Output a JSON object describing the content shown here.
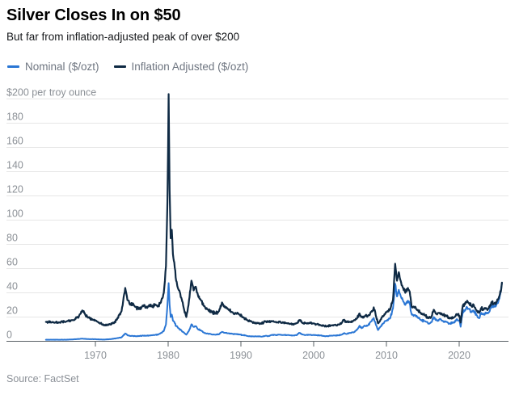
{
  "header": {
    "title": "Silver Closes In on $50",
    "subtitle": "But far from inflation-adjusted peak of over $200"
  },
  "legend": [
    {
      "label": "Nominal ($/ozt)",
      "color": "#2a76d4"
    },
    {
      "label": "Inflation Adjusted ($/ozt)",
      "color": "#0f2a44"
    }
  ],
  "source": "Source: FactSet",
  "chart_data": {
    "type": "line",
    "title": "Silver Closes In on $50",
    "subtitle": "But far from inflation-adjusted peak of over $200",
    "ylabel": "$ per troy ounce",
    "xlabel": "",
    "x_range": [
      1963.2,
      2025.9
    ],
    "ylim": [
      0,
      205
    ],
    "grid": "horizontal",
    "legend_position": "top-left",
    "y_ticks": {
      "values": [
        200,
        180,
        160,
        140,
        120,
        100,
        80,
        60,
        40,
        20,
        0
      ],
      "labels": [
        "$200 per troy ounce",
        "180",
        "160",
        "140",
        "120",
        "100",
        "80",
        "60",
        "40",
        "20",
        "0"
      ]
    },
    "x_ticks": [
      1970,
      1980,
      1990,
      2000,
      2010,
      2020
    ],
    "style": {
      "grid_color": "#e7e7e7",
      "axis_color": "#5a6066",
      "axis_text_color": "#8b9096"
    },
    "series": [
      {
        "name": "Nominal ($/ozt)",
        "color": "#2a76d4",
        "points": [
          [
            1963.2,
            1.3
          ],
          [
            1964,
            1.3
          ],
          [
            1965,
            1.3
          ],
          [
            1966,
            1.3
          ],
          [
            1967,
            1.6
          ],
          [
            1968.2,
            2.2
          ],
          [
            1969,
            1.8
          ],
          [
            1970,
            1.7
          ],
          [
            1971,
            1.4
          ],
          [
            1972,
            1.7
          ],
          [
            1973,
            2.6
          ],
          [
            1973.6,
            3.2
          ],
          [
            1974.1,
            6.5
          ],
          [
            1974.4,
            5.0
          ],
          [
            1974.8,
            4.4
          ],
          [
            1975.2,
            4.4
          ],
          [
            1975.5,
            4.2
          ],
          [
            1976,
            4.3
          ],
          [
            1976.5,
            4.7
          ],
          [
            1977,
            4.6
          ],
          [
            1977.4,
            4.8
          ],
          [
            1977.8,
            4.9
          ],
          [
            1978.2,
            5.3
          ],
          [
            1978.6,
            5.5
          ],
          [
            1979,
            6.8
          ],
          [
            1979.4,
            8.5
          ],
          [
            1979.7,
            14
          ],
          [
            1979.9,
            30
          ],
          [
            1980.07,
            48
          ],
          [
            1980.2,
            30
          ],
          [
            1980.35,
            20
          ],
          [
            1980.5,
            22
          ],
          [
            1980.65,
            17
          ],
          [
            1980.85,
            16
          ],
          [
            1981.1,
            12.5
          ],
          [
            1981.4,
            11
          ],
          [
            1981.8,
            9
          ],
          [
            1982.2,
            7
          ],
          [
            1982.5,
            5.5
          ],
          [
            1982.8,
            8
          ],
          [
            1983.2,
            14
          ],
          [
            1983.5,
            11.8
          ],
          [
            1983.8,
            12.5
          ],
          [
            1984.1,
            10
          ],
          [
            1984.5,
            9
          ],
          [
            1985,
            6.8
          ],
          [
            1985.5,
            6.2
          ],
          [
            1986,
            5.6
          ],
          [
            1986.5,
            5.4
          ],
          [
            1987,
            5.8
          ],
          [
            1987.4,
            7.8
          ],
          [
            1987.8,
            7
          ],
          [
            1988.3,
            6.6
          ],
          [
            1988.8,
            6.2
          ],
          [
            1989.3,
            5.9
          ],
          [
            1989.8,
            5.6
          ],
          [
            1990.3,
            5.1
          ],
          [
            1990.8,
            4.5
          ],
          [
            1991.3,
            4.1
          ],
          [
            1991.8,
            4
          ],
          [
            1992.3,
            4.1
          ],
          [
            1992.8,
            3.8
          ],
          [
            1993.3,
            4.4
          ],
          [
            1993.8,
            4.3
          ],
          [
            1994.3,
            5.3
          ],
          [
            1994.8,
            5.1
          ],
          [
            1995.3,
            5.5
          ],
          [
            1995.8,
            5.2
          ],
          [
            1996.3,
            5.1
          ],
          [
            1996.8,
            4.9
          ],
          [
            1997.3,
            4.7
          ],
          [
            1997.7,
            5.1
          ],
          [
            1998,
            7
          ],
          [
            1998.4,
            5.6
          ],
          [
            1998.9,
            5.1
          ],
          [
            1999.4,
            5.3
          ],
          [
            1999.9,
            5.2
          ],
          [
            2000.4,
            5
          ],
          [
            2000.9,
            4.8
          ],
          [
            2001.4,
            4.4
          ],
          [
            2001.9,
            4.2
          ],
          [
            2002.4,
            4.6
          ],
          [
            2002.9,
            4.7
          ],
          [
            2003.4,
            4.9
          ],
          [
            2003.9,
            5.6
          ],
          [
            2004.2,
            6.8
          ],
          [
            2004.5,
            6
          ],
          [
            2005,
            6.9
          ],
          [
            2005.5,
            7.3
          ],
          [
            2006,
            9.8
          ],
          [
            2006.3,
            12.8
          ],
          [
            2006.6,
            10.8
          ],
          [
            2007,
            13
          ],
          [
            2007.5,
            13.3
          ],
          [
            2008,
            16.8
          ],
          [
            2008.25,
            19.2
          ],
          [
            2008.6,
            13
          ],
          [
            2008.85,
            9.3
          ],
          [
            2009.2,
            12.2
          ],
          [
            2009.6,
            14.8
          ],
          [
            2010,
            17
          ],
          [
            2010.5,
            18.8
          ],
          [
            2010.9,
            27
          ],
          [
            2011.2,
            47.5
          ],
          [
            2011.45,
            37
          ],
          [
            2011.7,
            42.5
          ],
          [
            2011.95,
            37.5
          ],
          [
            2012.3,
            33
          ],
          [
            2012.6,
            30
          ],
          [
            2012.95,
            33.5
          ],
          [
            2013.2,
            31
          ],
          [
            2013.45,
            22.5
          ],
          [
            2013.8,
            21.5
          ],
          [
            2014.3,
            20
          ],
          [
            2014.8,
            17.3
          ],
          [
            2015.3,
            16.5
          ],
          [
            2015.8,
            14.5
          ],
          [
            2016.2,
            15.8
          ],
          [
            2016.5,
            20
          ],
          [
            2016.9,
            17.3
          ],
          [
            2017.3,
            18.2
          ],
          [
            2017.7,
            16.8
          ],
          [
            2018.2,
            16.3
          ],
          [
            2018.7,
            14.6
          ],
          [
            2019.2,
            15.2
          ],
          [
            2019.6,
            17.8
          ],
          [
            2020.05,
            17
          ],
          [
            2020.2,
            12
          ],
          [
            2020.5,
            24.5
          ],
          [
            2020.8,
            25.5
          ],
          [
            2021.1,
            28
          ],
          [
            2021.4,
            26.5
          ],
          [
            2021.7,
            24
          ],
          [
            2022,
            25.5
          ],
          [
            2022.4,
            21.5
          ],
          [
            2022.75,
            19
          ],
          [
            2023.05,
            23.5
          ],
          [
            2023.35,
            22
          ],
          [
            2023.65,
            23.8
          ],
          [
            2023.95,
            23
          ],
          [
            2024.2,
            25
          ],
          [
            2024.5,
            30
          ],
          [
            2024.8,
            28.5
          ],
          [
            2025.1,
            30
          ],
          [
            2025.4,
            33
          ],
          [
            2025.6,
            38
          ],
          [
            2025.78,
            44
          ],
          [
            2025.88,
            48
          ]
        ]
      },
      {
        "name": "Inflation Adjusted ($/ozt)",
        "color": "#0f2a44",
        "points": [
          [
            1963.2,
            16
          ],
          [
            1964,
            15.7
          ],
          [
            1965,
            15.5
          ],
          [
            1966,
            16.3
          ],
          [
            1967,
            17.5
          ],
          [
            1967.7,
            20
          ],
          [
            1968.2,
            25.5
          ],
          [
            1968.6,
            22
          ],
          [
            1969,
            19.5
          ],
          [
            1969.6,
            18
          ],
          [
            1970,
            17
          ],
          [
            1970.5,
            15.5
          ],
          [
            1971,
            13.8
          ],
          [
            1971.6,
            13.2
          ],
          [
            1972,
            14
          ],
          [
            1972.6,
            15.2
          ],
          [
            1973,
            18.5
          ],
          [
            1973.6,
            25
          ],
          [
            1974.1,
            44
          ],
          [
            1974.4,
            34
          ],
          [
            1974.8,
            30
          ],
          [
            1975.2,
            31
          ],
          [
            1975.5,
            28.5
          ],
          [
            1976,
            26.5
          ],
          [
            1976.5,
            29.5
          ],
          [
            1977,
            28
          ],
          [
            1977.4,
            30
          ],
          [
            1977.8,
            28.5
          ],
          [
            1978.2,
            30.5
          ],
          [
            1978.6,
            29
          ],
          [
            1979,
            32
          ],
          [
            1979.4,
            40
          ],
          [
            1979.7,
            62
          ],
          [
            1979.9,
            115
          ],
          [
            1980.07,
            204
          ],
          [
            1980.2,
            125
          ],
          [
            1980.35,
            85
          ],
          [
            1980.5,
            92
          ],
          [
            1980.65,
            72
          ],
          [
            1980.85,
            65
          ],
          [
            1981.1,
            50
          ],
          [
            1981.4,
            43
          ],
          [
            1981.8,
            36
          ],
          [
            1982.2,
            26
          ],
          [
            1982.5,
            20
          ],
          [
            1982.8,
            30
          ],
          [
            1983.2,
            50
          ],
          [
            1983.5,
            42
          ],
          [
            1983.8,
            45
          ],
          [
            1984.1,
            38
          ],
          [
            1984.5,
            34
          ],
          [
            1985,
            29
          ],
          [
            1985.5,
            26
          ],
          [
            1986,
            24
          ],
          [
            1986.5,
            23
          ],
          [
            1987,
            25
          ],
          [
            1987.4,
            32
          ],
          [
            1987.8,
            28
          ],
          [
            1988.3,
            26
          ],
          [
            1988.8,
            24
          ],
          [
            1989.3,
            23
          ],
          [
            1989.8,
            22
          ],
          [
            1990.3,
            20
          ],
          [
            1990.8,
            18
          ],
          [
            1991.3,
            16.5
          ],
          [
            1991.8,
            15.5
          ],
          [
            1992.3,
            15
          ],
          [
            1992.8,
            14.5
          ],
          [
            1993.3,
            16.5
          ],
          [
            1993.8,
            16
          ],
          [
            1994.3,
            16.5
          ],
          [
            1994.8,
            15.8
          ],
          [
            1995.3,
            16.2
          ],
          [
            1995.8,
            15.5
          ],
          [
            1996.3,
            15
          ],
          [
            1996.8,
            14.5
          ],
          [
            1997.3,
            14
          ],
          [
            1997.7,
            15
          ],
          [
            1998,
            17.5
          ],
          [
            1998.4,
            15.5
          ],
          [
            1998.9,
            15
          ],
          [
            1999.4,
            15.3
          ],
          [
            1999.9,
            14.8
          ],
          [
            2000.4,
            14
          ],
          [
            2000.9,
            13.5
          ],
          [
            2001.4,
            12.8
          ],
          [
            2001.9,
            12.4
          ],
          [
            2002.4,
            13.2
          ],
          [
            2002.9,
            13.4
          ],
          [
            2003.4,
            13.8
          ],
          [
            2003.9,
            15.5
          ],
          [
            2004.2,
            17.8
          ],
          [
            2004.5,
            15.8
          ],
          [
            2005,
            16.2
          ],
          [
            2005.5,
            17
          ],
          [
            2006,
            19.5
          ],
          [
            2006.3,
            23
          ],
          [
            2006.6,
            20
          ],
          [
            2007,
            20.5
          ],
          [
            2007.5,
            21.5
          ],
          [
            2008,
            25
          ],
          [
            2008.25,
            28
          ],
          [
            2008.6,
            20
          ],
          [
            2008.85,
            14.8
          ],
          [
            2009.2,
            18
          ],
          [
            2009.6,
            21
          ],
          [
            2010,
            24
          ],
          [
            2010.5,
            26
          ],
          [
            2010.9,
            34
          ],
          [
            2011.2,
            64
          ],
          [
            2011.45,
            50
          ],
          [
            2011.7,
            57
          ],
          [
            2011.95,
            50
          ],
          [
            2012.3,
            44
          ],
          [
            2012.6,
            40
          ],
          [
            2012.95,
            44
          ],
          [
            2013.2,
            41
          ],
          [
            2013.45,
            29
          ],
          [
            2013.8,
            28
          ],
          [
            2014.3,
            26
          ],
          [
            2014.8,
            22.5
          ],
          [
            2015.3,
            21.5
          ],
          [
            2015.8,
            19
          ],
          [
            2016.2,
            20.5
          ],
          [
            2016.5,
            26
          ],
          [
            2016.9,
            22.5
          ],
          [
            2017.3,
            23.5
          ],
          [
            2017.7,
            21.8
          ],
          [
            2018.2,
            21
          ],
          [
            2018.7,
            18.8
          ],
          [
            2019.2,
            19.5
          ],
          [
            2019.6,
            22.5
          ],
          [
            2020.05,
            21
          ],
          [
            2020.2,
            15.5
          ],
          [
            2020.5,
            29.5
          ],
          [
            2020.8,
            30.5
          ],
          [
            2021.1,
            33.5
          ],
          [
            2021.4,
            31.5
          ],
          [
            2021.7,
            29
          ],
          [
            2022,
            30
          ],
          [
            2022.4,
            25.5
          ],
          [
            2022.75,
            23.5
          ],
          [
            2023.05,
            27.5
          ],
          [
            2023.35,
            26
          ],
          [
            2023.65,
            27.5
          ],
          [
            2023.95,
            26.5
          ],
          [
            2024.2,
            28.5
          ],
          [
            2024.5,
            32.5
          ],
          [
            2024.8,
            31
          ],
          [
            2025.1,
            32
          ],
          [
            2025.4,
            35
          ],
          [
            2025.6,
            39
          ],
          [
            2025.78,
            43
          ],
          [
            2025.88,
            48.5
          ]
        ]
      }
    ]
  }
}
